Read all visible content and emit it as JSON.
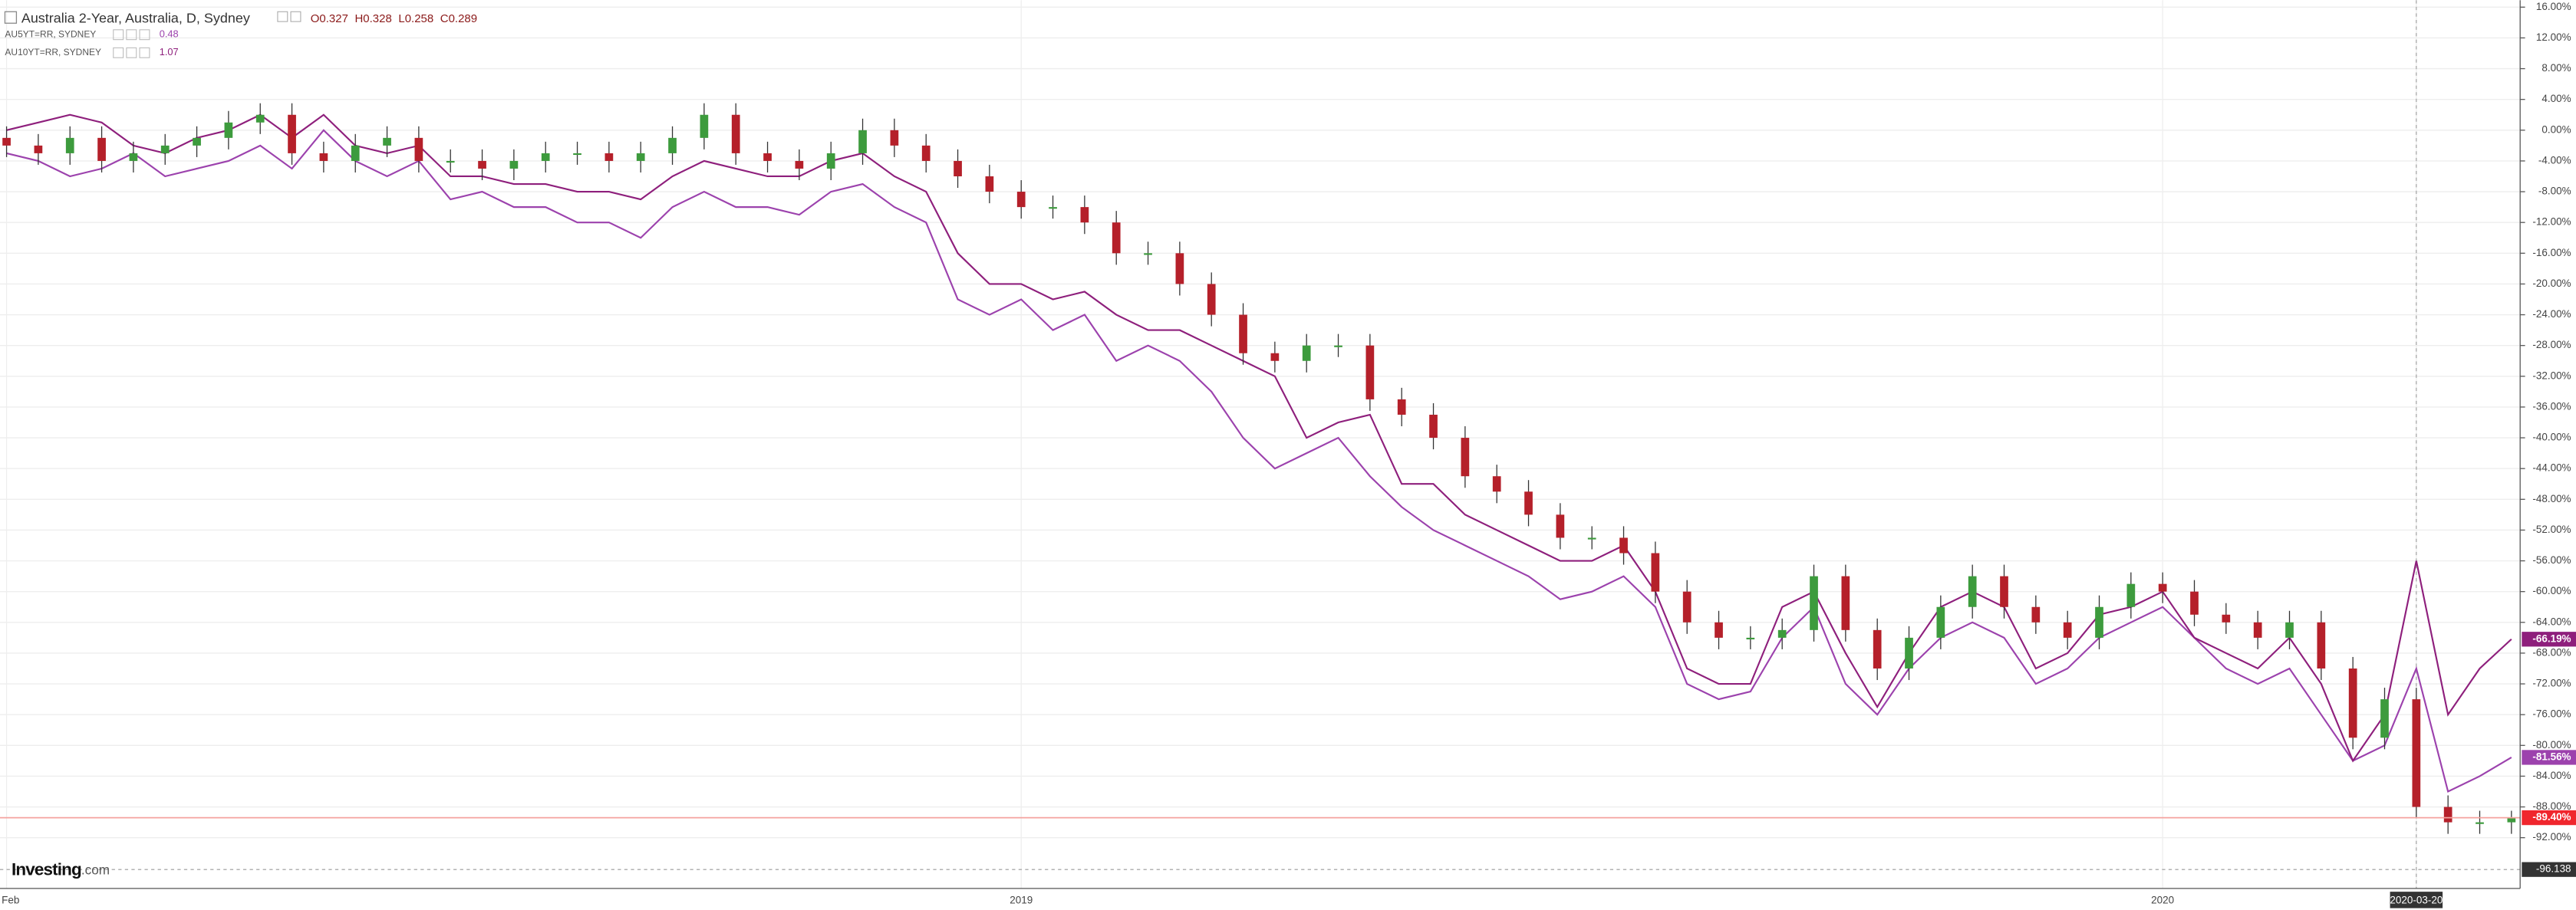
{
  "chart_data": {
    "type": "candlestick",
    "title": "Australia 2-Year, Australia, D, Sydney",
    "ohlc": [
      "O0.327",
      "H0.328",
      "L0.258",
      "C0.289"
    ],
    "logo": [
      "Investing",
      ".com"
    ],
    "categories": [
      "Feb",
      null,
      null,
      null,
      null,
      null,
      null,
      null,
      null,
      null,
      null,
      null,
      null,
      null,
      null,
      null,
      null,
      null,
      null,
      null,
      null,
      null,
      null,
      null,
      null,
      null,
      null,
      null,
      null,
      null,
      null,
      null,
      "2019",
      null,
      null,
      null,
      null,
      null,
      null,
      null,
      null,
      null,
      null,
      null,
      null,
      null,
      null,
      null,
      null,
      null,
      null,
      null,
      null,
      null,
      null,
      null,
      null,
      null,
      null,
      null,
      null,
      null,
      null,
      null,
      null,
      null,
      null,
      null,
      "2020",
      null,
      null,
      null,
      null,
      null,
      null,
      null,
      "2020-03-20",
      null,
      null,
      null
    ],
    "candles": {
      "up_color": "#3d9b3d",
      "down_color": "#b5202a",
      "open": [
        -1,
        -2,
        -3,
        -1,
        -4,
        -3,
        -2,
        -1,
        1,
        2,
        -3,
        -4,
        -2,
        -1,
        -4,
        -4,
        -5,
        -4,
        -3,
        -3,
        -4,
        -3,
        -1,
        2,
        -3,
        -4,
        -5,
        -3,
        0,
        -2,
        -4,
        -6,
        -8,
        -10,
        -10,
        -12,
        -16,
        -16,
        -20,
        -24,
        -29,
        -30,
        -28,
        -28,
        -35,
        -37,
        -40,
        -45,
        -47,
        -50,
        -53,
        -53,
        -55,
        -60,
        -64,
        -66,
        -66,
        -65,
        -58,
        -65,
        -70,
        -66,
        -62,
        -58,
        -62,
        -64,
        -66,
        -62,
        -59,
        -60,
        -63,
        -64,
        -66,
        -64,
        -70,
        -79,
        -74,
        -88,
        -90,
        -90
      ],
      "high": [
        0.5,
        -0.5,
        0.5,
        0.5,
        -1.5,
        -0.5,
        0.5,
        2.5,
        3.5,
        3.5,
        -1.5,
        -0.5,
        0.5,
        0.5,
        -2.5,
        -2.5,
        -2.5,
        -1.5,
        -1.5,
        -1.5,
        -1.5,
        0.5,
        3.5,
        3.5,
        -1.5,
        -2.5,
        -1.5,
        1.5,
        1.5,
        -0.5,
        -2.5,
        -4.5,
        -6.5,
        -8.5,
        -8.5,
        -10.5,
        -14.5,
        -14.5,
        -18.5,
        -22.5,
        -27.5,
        -26.5,
        -26.5,
        -26.5,
        -33.5,
        -35.5,
        -38.5,
        -43.5,
        -45.5,
        -48.5,
        -51.5,
        -51.5,
        -53.5,
        -58.5,
        -62.5,
        -64.5,
        -63.5,
        -56.5,
        -56.5,
        -63.5,
        -64.5,
        -60.5,
        -56.5,
        -56.5,
        -60.5,
        -62.5,
        -60.5,
        -57.5,
        -57.5,
        -58.5,
        -61.5,
        -62.5,
        -62.5,
        -62.5,
        -68.5,
        -72.5,
        -72.5,
        -86.5,
        -88.5,
        -88.5
      ],
      "low": [
        -3.5,
        -4.5,
        -4.5,
        -5.5,
        -5.5,
        -4.5,
        -3.5,
        -2.5,
        -0.5,
        -4.5,
        -5.5,
        -5.5,
        -3.5,
        -5.5,
        -5.5,
        -6.5,
        -6.5,
        -5.5,
        -4.5,
        -5.5,
        -5.5,
        -4.5,
        -2.5,
        -4.5,
        -5.5,
        -6.5,
        -6.5,
        -4.5,
        -3.5,
        -5.5,
        -7.5,
        -9.5,
        -11.5,
        -11.5,
        -13.5,
        -17.5,
        -17.5,
        -21.5,
        -25.5,
        -30.5,
        -31.5,
        -31.5,
        -29.5,
        -36.5,
        -38.5,
        -41.5,
        -46.5,
        -48.5,
        -51.5,
        -54.5,
        -54.5,
        -56.5,
        -61.5,
        -65.5,
        -67.5,
        -67.5,
        -67.5,
        -66.5,
        -66.5,
        -71.5,
        -71.5,
        -67.5,
        -63.5,
        -63.5,
        -65.5,
        -67.5,
        -67.5,
        -63.5,
        -61.5,
        -64.5,
        -65.5,
        -67.5,
        -67.5,
        -71.5,
        -80.5,
        -80.5,
        -89.5,
        -91.5,
        -91.5,
        -91.5
      ],
      "close": [
        -2,
        -3,
        -1,
        -4,
        -3,
        -2,
        -1,
        1,
        2,
        -3,
        -4,
        -2,
        -1,
        -4,
        -4,
        -5,
        -4,
        -3,
        -3,
        -4,
        -3,
        -1,
        2,
        -3,
        -4,
        -5,
        -3,
        0,
        -2,
        -4,
        -6,
        -8,
        -10,
        -10,
        -12,
        -16,
        -16,
        -20,
        -24,
        -29,
        -30,
        -28,
        -28,
        -35,
        -37,
        -40,
        -45,
        -47,
        -50,
        -53,
        -53,
        -55,
        -60,
        -64,
        -66,
        -66,
        -65,
        -58,
        -65,
        -70,
        -66,
        -62,
        -58,
        -62,
        -64,
        -66,
        -62,
        -59,
        -60,
        -63,
        -64,
        -66,
        -64,
        -70,
        -79,
        -74,
        -88,
        -90,
        -90,
        -89.4
      ],
      "last_label": "-89.40%",
      "label_color": "#f0262d"
    },
    "series": [
      {
        "name": "AU5YT=RR, SYDNEY",
        "legend_value": "0.48",
        "color": "#9c42ad",
        "last_label": "-81.56%",
        "values": [
          -3,
          -4,
          -6,
          -5,
          -3,
          -6,
          -5,
          -4,
          -2,
          -5,
          0,
          -4,
          -6,
          -4,
          -9,
          -8,
          -10,
          -10,
          -12,
          -12,
          -14,
          -10,
          -8,
          -10,
          -10,
          -11,
          -8,
          -7,
          -10,
          -12,
          -22,
          -24,
          -22,
          -26,
          -24,
          -30,
          -28,
          -30,
          -34,
          -40,
          -44,
          -42,
          -40,
          -45,
          -49,
          -52,
          -54,
          -56,
          -58,
          -61,
          -60,
          -58,
          -62,
          -72,
          -74,
          -73,
          -66,
          -62,
          -72,
          -76,
          -70,
          -66,
          -64,
          -66,
          -72,
          -70,
          -66,
          -64,
          -62,
          -66,
          -70,
          -72,
          -70,
          -76,
          -82,
          -80,
          -70,
          -86,
          -84,
          -81.56
        ]
      },
      {
        "name": "AU10YT=RR, SYDNEY",
        "legend_value": "1.07",
        "color": "#8e1f7c",
        "last_label": "-66.19%",
        "values": [
          0,
          1,
          2,
          1,
          -2,
          -3,
          -1,
          0,
          2,
          -1,
          2,
          -2,
          -3,
          -2,
          -6,
          -6,
          -7,
          -7,
          -8,
          -8,
          -9,
          -6,
          -4,
          -5,
          -6,
          -6,
          -4,
          -3,
          -6,
          -8,
          -16,
          -20,
          -20,
          -22,
          -21,
          -24,
          -26,
          -26,
          -28,
          -30,
          -32,
          -40,
          -38,
          -37,
          -46,
          -46,
          -50,
          -52,
          -54,
          -56,
          -56,
          -54,
          -60,
          -70,
          -72,
          -72,
          -62,
          -60,
          -68,
          -75,
          -68,
          -62,
          -60,
          -62,
          -70,
          -68,
          -63,
          -62,
          -60,
          -66,
          -68,
          -70,
          -66,
          -72,
          -82,
          -76,
          -56,
          -76,
          -70,
          -66.19
        ]
      }
    ],
    "ylim": [
      -98.6,
      16.9
    ],
    "yticks": [
      {
        "value": 16,
        "label": "16.00%"
      },
      {
        "value": 12,
        "label": "12.00%"
      },
      {
        "value": 8,
        "label": "8.00%"
      },
      {
        "value": 4,
        "label": "4.00%"
      },
      {
        "value": 0,
        "label": "0.00%"
      },
      {
        "value": -4,
        "label": "-4.00%"
      },
      {
        "value": -8,
        "label": "-8.00%"
      },
      {
        "value": -12,
        "label": "-12.00%"
      },
      {
        "value": -16,
        "label": "-16.00%"
      },
      {
        "value": -20,
        "label": "-20.00%"
      },
      {
        "value": -24,
        "label": "-24.00%"
      },
      {
        "value": -28,
        "label": "-28.00%"
      },
      {
        "value": -32,
        "label": "-32.00%"
      },
      {
        "value": -36,
        "label": "-36.00%"
      },
      {
        "value": -40,
        "label": "-40.00%"
      },
      {
        "value": -44,
        "label": "-44.00%"
      },
      {
        "value": -48,
        "label": "-48.00%"
      },
      {
        "value": -52,
        "label": "-52.00%"
      },
      {
        "value": -56,
        "label": "-56.00%"
      },
      {
        "value": -60,
        "label": "-60.00%"
      },
      {
        "value": -64,
        "label": "-64.00%"
      },
      {
        "value": -68,
        "label": "-68.00%"
      },
      {
        "value": -72,
        "label": "-72.00%"
      },
      {
        "value": -76,
        "label": "-76.00%"
      },
      {
        "value": -80,
        "label": "-80.00%"
      },
      {
        "value": -84,
        "label": "-84.00%"
      },
      {
        "value": -88,
        "label": "-88.00%"
      },
      {
        "value": -92,
        "label": "-92.00%"
      }
    ],
    "grid": true,
    "crosshair": {
      "y": -96.138,
      "x": "2020-03-20"
    }
  }
}
